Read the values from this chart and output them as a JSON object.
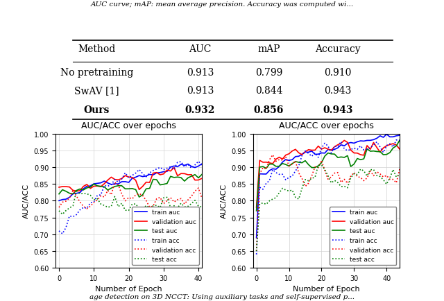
{
  "table": {
    "headers": [
      "Method",
      "AUC",
      "mAP",
      "Accuracy"
    ],
    "rows": [
      [
        "No pretraining",
        "0.913",
        "0.799",
        "0.910"
      ],
      [
        "SwAV [1]",
        "0.913",
        "0.844",
        "0.943"
      ],
      [
        "Ours",
        "0.932",
        "0.856",
        "0.943"
      ]
    ],
    "bold_row": 2
  },
  "plot_title": "AUC/ACC over epochs",
  "xlabel": "Number of Epoch",
  "ylabel": "AUC/ACC",
  "ylim": [
    0.6,
    1.0
  ],
  "yticks": [
    0.6,
    0.65,
    0.7,
    0.75,
    0.8,
    0.85,
    0.9,
    0.95,
    1.0
  ],
  "colors": {
    "blue": "#0000ff",
    "red": "#ff0000",
    "green": "#008000"
  },
  "legend_entries": [
    {
      "label": "train auc",
      "color": "#0000ff",
      "linestyle": "solid"
    },
    {
      "label": "validation auc",
      "color": "#ff0000",
      "linestyle": "solid"
    },
    {
      "label": "test auc",
      "color": "#008000",
      "linestyle": "solid"
    },
    {
      "label": "train acc",
      "color": "#0000ff",
      "linestyle": "dotted"
    },
    {
      "label": "validation acc",
      "color": "#ff0000",
      "linestyle": "dotted"
    },
    {
      "label": "test acc",
      "color": "#008000",
      "linestyle": "dotted"
    }
  ]
}
